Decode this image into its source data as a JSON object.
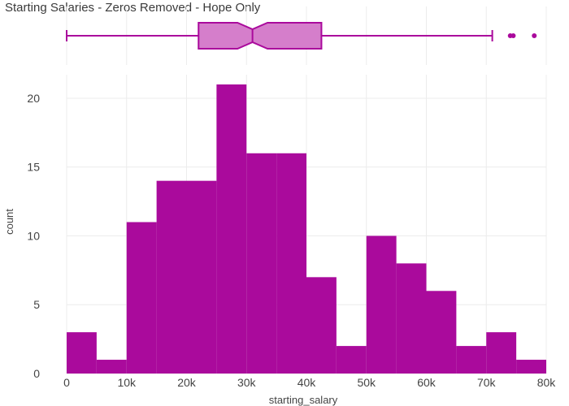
{
  "title": "Starting Salaries - Zeros Removed - Hope Only",
  "colors": {
    "bar": "#aa0a9c",
    "box_fill": "#d57ecb",
    "box_stroke": "#aa0a9c"
  },
  "chart_data": [
    {
      "type": "boxplot",
      "orientation": "horizontal",
      "notched": true,
      "min": 0,
      "q1": 22000,
      "median": 31000,
      "q3": 42500,
      "notch_low": 28500,
      "notch_high": 33500,
      "max": 71000,
      "outliers": [
        74000,
        74500,
        78000
      ]
    },
    {
      "type": "histogram",
      "bin_width": 5000,
      "x": [
        0,
        5000,
        10000,
        15000,
        20000,
        25000,
        30000,
        35000,
        40000,
        45000,
        50000,
        55000,
        60000,
        65000,
        70000,
        75000
      ],
      "values": [
        3,
        1,
        11,
        14,
        14,
        21,
        16,
        16,
        7,
        2,
        10,
        8,
        6,
        2,
        3,
        1
      ],
      "xlabel": "starting_salary",
      "ylabel": "count",
      "xlim": [
        0,
        80000
      ],
      "ylim": [
        0,
        21
      ],
      "xticks": [
        0,
        10000,
        20000,
        30000,
        40000,
        50000,
        60000,
        70000,
        80000
      ],
      "xtick_labels": [
        "0",
        "10k",
        "20k",
        "30k",
        "40k",
        "50k",
        "60k",
        "70k",
        "80k"
      ],
      "yticks": [
        0,
        5,
        10,
        15,
        20
      ],
      "ytick_labels": [
        "0",
        "5",
        "10",
        "15",
        "20"
      ],
      "grid": true
    }
  ]
}
